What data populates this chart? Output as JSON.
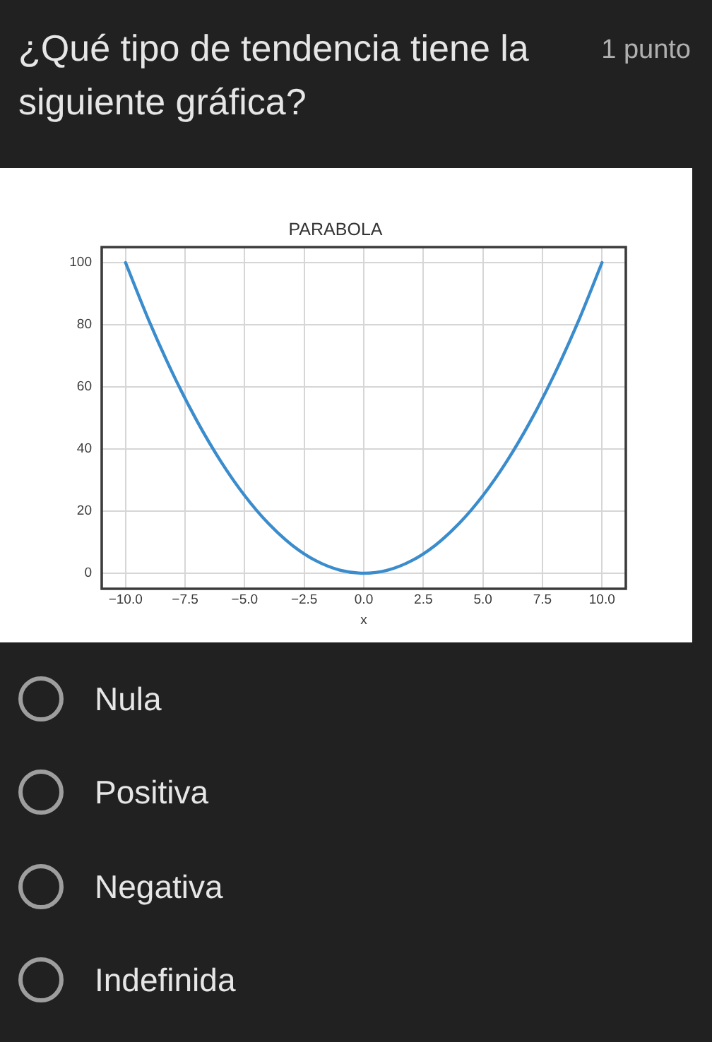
{
  "chart_data": {
    "type": "line",
    "title": "PARABOLA",
    "xlabel": "x",
    "x": [
      -10,
      -9,
      -8,
      -7,
      -6,
      -5,
      -4,
      -3,
      -2,
      -1,
      0,
      1,
      2,
      3,
      4,
      5,
      6,
      7,
      8,
      9,
      10
    ],
    "values": [
      100,
      81,
      64,
      49,
      36,
      25,
      16,
      9,
      4,
      1,
      0,
      1,
      4,
      9,
      16,
      25,
      36,
      49,
      64,
      81,
      100
    ],
    "color": "#3a8ccc",
    "line_style": "solid",
    "xlim": [
      -11,
      11
    ],
    "ylim": [
      -5,
      105
    ],
    "xticks": [
      {
        "value": -10,
        "label": "−10.0"
      },
      {
        "value": -7.5,
        "label": "−7.5"
      },
      {
        "value": -5,
        "label": "−5.0"
      },
      {
        "value": -2.5,
        "label": "−2.5"
      },
      {
        "value": 0,
        "label": "0.0"
      },
      {
        "value": 2.5,
        "label": "2.5"
      },
      {
        "value": 5,
        "label": "5.0"
      },
      {
        "value": 7.5,
        "label": "7.5"
      },
      {
        "value": 10,
        "label": "10.0"
      }
    ],
    "yticks": [
      0,
      20,
      40,
      60,
      80,
      100
    ],
    "grid": true,
    "annotations": [
      "¿Qué tipo de tendencia tiene la siguiente gráfica?",
      "1 punto",
      "Nula",
      "Positiva",
      "Negativa",
      "Indefinida"
    ]
  }
}
